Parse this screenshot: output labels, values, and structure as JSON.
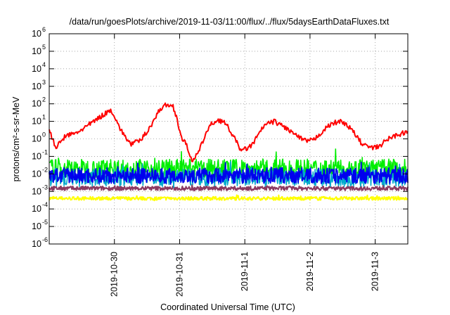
{
  "chart_data": {
    "type": "line",
    "title": "/data/run/goesPlots/archive/2019-11-03/11:00/flux/../flux/5daysEarthDataFluxes.txt",
    "xlabel": "Coordinated Universal Time (UTC)",
    "ylabel": "protons/cm²-s-sr-MeV",
    "y_scale": "log",
    "ylim": [
      1e-06,
      1000000.0
    ],
    "y_ticks": [
      {
        "base": "10",
        "exp": "-6"
      },
      {
        "base": "10",
        "exp": "-5"
      },
      {
        "base": "10",
        "exp": "-4"
      },
      {
        "base": "10",
        "exp": "-3"
      },
      {
        "base": "10",
        "exp": "-2"
      },
      {
        "base": "10",
        "exp": "-1"
      },
      {
        "base": "10",
        "exp": "0"
      },
      {
        "base": "10",
        "exp": "1"
      },
      {
        "base": "10",
        "exp": "2"
      },
      {
        "base": "10",
        "exp": "3"
      },
      {
        "base": "10",
        "exp": "4"
      },
      {
        "base": "10",
        "exp": "5"
      },
      {
        "base": "10",
        "exp": "6"
      }
    ],
    "x_range_days": [
      "2019-10-29 00:00",
      "2019-11-03 12:00"
    ],
    "x_ticks": [
      "2019-10-30",
      "2019-10-31",
      "2019-11-1",
      "2019-11-2",
      "2019-11-3"
    ],
    "grid": true,
    "series": [
      {
        "color": "#ff0000",
        "x": [
          29.0,
          29.1,
          29.25,
          29.4,
          29.6,
          29.8,
          29.9,
          29.95,
          30.0,
          30.1,
          30.25,
          30.4,
          30.55,
          30.7,
          30.8,
          30.9,
          30.95,
          31.0,
          31.05,
          31.1,
          31.2,
          31.3,
          31.4,
          31.5,
          31.6,
          31.7,
          31.8,
          31.95,
          32.1,
          32.2,
          32.3,
          32.45,
          32.6,
          32.75,
          32.9,
          33.05,
          33.2,
          33.35,
          33.5,
          33.65,
          33.8,
          33.95,
          34.05,
          34.1,
          34.2,
          34.3,
          34.4,
          34.5
        ],
        "values": [
          3,
          0.3,
          1.5,
          2,
          6,
          20,
          35,
          45,
          20,
          3,
          0.5,
          0.8,
          5,
          50,
          90,
          70,
          20,
          3,
          0.8,
          0.5,
          0.05,
          0.2,
          2,
          8,
          12,
          8,
          2,
          0.2,
          0.4,
          1.5,
          6,
          10,
          5,
          2,
          0.8,
          0.8,
          3,
          8,
          10,
          3,
          0.5,
          0.3,
          0.35,
          0.5,
          1,
          1.5,
          2,
          2.5
        ]
      },
      {
        "color": "#00ee00",
        "x": [
          29.0,
          34.5
        ],
        "values": [
          0.02,
          0.02
        ]
      },
      {
        "color": "#00aacc",
        "x": [
          29.0,
          34.5
        ],
        "values": [
          0.006,
          0.006
        ]
      },
      {
        "color": "#0000ee",
        "x": [
          29.0,
          34.5
        ],
        "values": [
          0.008,
          0.008
        ]
      },
      {
        "color": "#8b3a62",
        "x": [
          29.0,
          34.5
        ],
        "values": [
          0.0015,
          0.0015
        ]
      },
      {
        "color": "#ffff00",
        "x": [
          29.0,
          34.5
        ],
        "values": [
          0.0004,
          0.0004
        ]
      }
    ]
  }
}
